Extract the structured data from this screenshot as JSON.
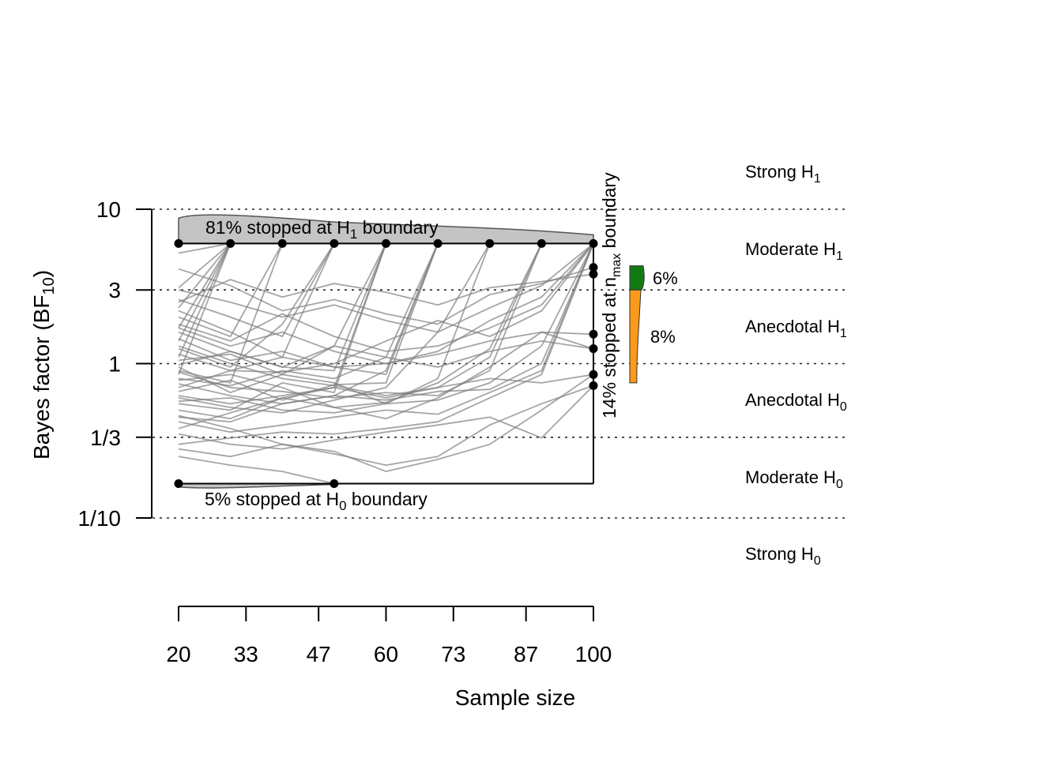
{
  "chart_data": {
    "type": "line",
    "xlabel": "Sample size",
    "ylabel": "Bayes factor (BF",
    "ylabel_sub": "10",
    "ylabel_end": ")",
    "yscale": "log",
    "xlim": [
      20,
      100
    ],
    "ylim": [
      0.1,
      10
    ],
    "x_ticks": [
      20,
      33,
      47,
      60,
      73,
      87,
      100
    ],
    "x_tick_labels": [
      "20",
      "33",
      "47",
      "60",
      "73",
      "87",
      "100"
    ],
    "y_ticks": [
      {
        "value": 10,
        "label": "10"
      },
      {
        "value": 3,
        "label": "3"
      },
      {
        "value": 1,
        "label": "1"
      },
      {
        "value": 0.3333,
        "label": "1/3"
      },
      {
        "value": 0.1,
        "label": "1/10"
      }
    ],
    "reference_lines": [
      10,
      3,
      1,
      0.3333,
      0.1
    ],
    "boundaries": {
      "upper": 6,
      "lower": 0.167,
      "nmax": 100
    },
    "evidence_categories": [
      {
        "main": "Strong H",
        "sub": "1"
      },
      {
        "main": "Moderate H",
        "sub": "1"
      },
      {
        "main": "Anecdotal H",
        "sub": "1"
      },
      {
        "main": "Anecdotal H",
        "sub": "0"
      },
      {
        "main": "Moderate H",
        "sub": "0"
      },
      {
        "main": "Strong H",
        "sub": "0"
      }
    ],
    "annotations": {
      "h1_stop": {
        "pre": "81% stopped at H",
        "sub": "1",
        "post": " boundary"
      },
      "h0_stop": {
        "pre": "5% stopped at H",
        "sub": "0",
        "post": " boundary"
      },
      "nmax_stop": {
        "pre": "14% stopped at n",
        "sub": "max",
        "post": " boundary"
      }
    },
    "nmax_distribution": [
      {
        "label": "6%",
        "range": [
          3,
          4.3
        ],
        "color": "#137a13"
      },
      {
        "label": "8%",
        "range": [
          0.75,
          3
        ],
        "color": "#fb9a1b"
      }
    ],
    "stop_points_h1": [
      20,
      30,
      40,
      50,
      60,
      70,
      80,
      90,
      100
    ],
    "stop_points_h0": [
      20,
      50
    ],
    "stop_points_nmax": [
      4.2,
      3.8,
      1.55,
      1.25,
      0.85,
      0.72
    ],
    "series": [
      {
        "x": [
          20,
          30
        ],
        "y": [
          5.2,
          6
        ]
      },
      {
        "x": [
          20,
          30
        ],
        "y": [
          3.1,
          6
        ]
      },
      {
        "x": [
          20,
          30
        ],
        "y": [
          2.3,
          6
        ]
      },
      {
        "x": [
          20,
          30
        ],
        "y": [
          1.7,
          6
        ]
      },
      {
        "x": [
          20,
          30
        ],
        "y": [
          1.4,
          6
        ]
      },
      {
        "x": [
          20,
          30
        ],
        "y": [
          1.1,
          6
        ]
      },
      {
        "x": [
          20,
          30
        ],
        "y": [
          0.85,
          6
        ]
      },
      {
        "x": [
          20,
          30,
          40
        ],
        "y": [
          2.0,
          1.5,
          6
        ]
      },
      {
        "x": [
          20,
          30,
          40
        ],
        "y": [
          0.9,
          0.75,
          6
        ]
      },
      {
        "x": [
          20,
          30,
          40,
          50
        ],
        "y": [
          2.6,
          2.0,
          1.5,
          6
        ]
      },
      {
        "x": [
          20,
          30,
          40,
          50
        ],
        "y": [
          1.25,
          0.95,
          1.8,
          6
        ]
      },
      {
        "x": [
          20,
          30,
          40,
          50
        ],
        "y": [
          0.7,
          0.9,
          1.1,
          6
        ]
      },
      {
        "x": [
          20,
          30,
          40,
          50,
          60
        ],
        "y": [
          1.6,
          1.2,
          0.95,
          0.9,
          6
        ]
      },
      {
        "x": [
          20,
          30,
          40,
          50,
          60
        ],
        "y": [
          0.55,
          0.5,
          0.75,
          0.65,
          6
        ]
      },
      {
        "x": [
          20,
          30,
          40,
          50,
          60
        ],
        "y": [
          1.05,
          1.15,
          0.85,
          1.3,
          6
        ]
      },
      {
        "x": [
          20,
          30,
          40,
          50,
          60
        ],
        "y": [
          0.38,
          0.48,
          0.6,
          0.7,
          6
        ]
      },
      {
        "x": [
          20,
          30,
          40,
          50,
          60,
          70
        ],
        "y": [
          0.8,
          0.72,
          0.9,
          0.8,
          1.1,
          6
        ]
      },
      {
        "x": [
          20,
          30,
          40,
          50,
          60,
          70
        ],
        "y": [
          0.45,
          0.42,
          0.55,
          0.62,
          0.9,
          6
        ]
      },
      {
        "x": [
          20,
          30,
          40,
          50,
          60,
          70
        ],
        "y": [
          1.45,
          1.05,
          1.2,
          0.95,
          0.85,
          6
        ]
      },
      {
        "x": [
          20,
          30,
          40,
          50,
          60,
          70
        ],
        "y": [
          0.66,
          0.78,
          0.58,
          0.73,
          0.75,
          6
        ]
      },
      {
        "x": [
          20,
          30,
          40,
          50,
          60,
          70,
          80
        ],
        "y": [
          0.95,
          0.65,
          0.85,
          0.75,
          0.55,
          0.8,
          6
        ]
      },
      {
        "x": [
          20,
          30,
          40,
          50,
          60,
          70,
          80
        ],
        "y": [
          0.6,
          0.52,
          0.48,
          0.58,
          0.7,
          1.6,
          6
        ]
      },
      {
        "x": [
          20,
          30,
          40,
          50,
          60,
          70,
          80,
          90
        ],
        "y": [
          1.3,
          1.0,
          0.8,
          0.72,
          0.62,
          0.7,
          1.1,
          6
        ]
      },
      {
        "x": [
          20,
          30,
          40,
          50,
          60,
          70,
          80,
          90
        ],
        "y": [
          0.5,
          0.44,
          0.6,
          0.52,
          0.56,
          0.75,
          1.25,
          6
        ]
      },
      {
        "x": [
          20,
          30,
          40,
          50,
          60,
          70,
          80,
          90
        ],
        "y": [
          0.88,
          0.7,
          0.66,
          0.6,
          0.65,
          0.62,
          0.9,
          6
        ]
      },
      {
        "x": [
          20,
          30,
          40,
          50,
          60,
          70,
          80,
          90,
          100
        ],
        "y": [
          0.42,
          0.36,
          0.4,
          0.45,
          0.5,
          0.47,
          0.65,
          0.9,
          6
        ]
      },
      {
        "x": [
          20,
          30,
          40,
          50,
          60,
          70,
          80,
          90,
          100
        ],
        "y": [
          0.74,
          0.62,
          0.55,
          0.62,
          0.58,
          0.66,
          0.68,
          1.0,
          6
        ]
      },
      {
        "x": [
          20,
          30,
          40,
          50,
          60,
          70,
          80,
          90,
          100
        ],
        "y": [
          2.2,
          1.6,
          1.1,
          0.95,
          1.0,
          1.2,
          1.9,
          2.7,
          6
        ]
      },
      {
        "x": [
          20,
          30,
          40,
          50,
          60,
          70,
          80,
          90,
          100
        ],
        "y": [
          1.8,
          1.4,
          2.1,
          1.5,
          1.2,
          1.3,
          1.7,
          2.4,
          6
        ]
      },
      {
        "x": [
          20,
          30,
          40,
          50,
          60,
          70,
          80,
          90,
          100
        ],
        "y": [
          0.3,
          0.33,
          0.36,
          0.35,
          0.38,
          0.42,
          0.6,
          0.85,
          6
        ]
      },
      {
        "x": [
          20,
          30,
          40,
          50,
          60,
          70,
          80,
          90,
          100
        ],
        "y": [
          1.15,
          0.9,
          0.88,
          1.0,
          1.4,
          1.9,
          1.5,
          2.2,
          6
        ]
      },
      {
        "x": [
          20,
          30,
          40,
          50,
          60,
          70,
          80,
          90,
          100
        ],
        "y": [
          3.0,
          2.5,
          2.0,
          2.4,
          1.9,
          1.6,
          2.3,
          3.2,
          6
        ]
      },
      {
        "x": [
          20,
          30,
          40,
          50,
          60,
          70,
          80,
          90,
          100
        ],
        "y": [
          0.57,
          0.6,
          0.5,
          0.48,
          0.55,
          0.58,
          0.75,
          1.3,
          6
        ]
      },
      {
        "x": [
          20,
          30,
          40,
          50
        ],
        "y": [
          0.25,
          0.22,
          0.2,
          0.167
        ]
      },
      {
        "x": [
          20,
          30,
          40,
          50,
          60,
          70,
          80,
          90,
          100
        ],
        "y": [
          4.1,
          3.2,
          2.2,
          2.6,
          2.1,
          1.8,
          2.8,
          3.3,
          4.2
        ]
      },
      {
        "x": [
          20,
          30,
          40,
          50,
          60,
          70,
          80,
          90,
          100
        ],
        "y": [
          2.5,
          3.5,
          2.7,
          3.3,
          2.9,
          2.4,
          3.1,
          3.4,
          3.8
        ]
      },
      {
        "x": [
          20,
          30,
          40,
          50,
          60,
          70,
          80,
          90,
          100
        ],
        "y": [
          1.7,
          1.3,
          1.6,
          1.2,
          1.0,
          1.15,
          1.4,
          1.6,
          1.55
        ]
      },
      {
        "x": [
          20,
          30,
          40,
          50,
          60,
          70,
          80,
          90,
          100
        ],
        "y": [
          0.98,
          1.2,
          0.95,
          1.3,
          1.1,
          0.95,
          1.2,
          1.4,
          1.25
        ]
      },
      {
        "x": [
          20,
          30,
          40,
          50,
          60,
          70,
          80,
          90,
          100
        ],
        "y": [
          0.62,
          0.55,
          0.62,
          0.7,
          0.6,
          0.7,
          0.8,
          0.75,
          0.85
        ]
      },
      {
        "x": [
          20,
          30,
          40,
          50,
          60,
          70,
          80,
          90,
          100
        ],
        "y": [
          0.35,
          0.3,
          0.28,
          0.32,
          0.36,
          0.4,
          0.45,
          0.33,
          0.72
        ]
      },
      {
        "x": [
          20,
          30,
          40,
          50,
          60,
          70,
          80,
          90,
          100
        ],
        "y": [
          0.28,
          0.25,
          0.3,
          0.26,
          0.22,
          0.25,
          0.4,
          0.55,
          0.72
        ]
      },
      {
        "x": [
          20,
          30,
          40,
          50,
          60,
          70,
          80,
          90,
          100
        ],
        "y": [
          0.46,
          0.38,
          0.3,
          0.27,
          0.2,
          0.24,
          0.3,
          0.5,
          0.85
        ]
      },
      {
        "x": [
          20,
          30,
          40,
          50,
          60,
          70,
          80,
          90,
          100
        ],
        "y": [
          0.78,
          0.85,
          0.7,
          0.52,
          0.44,
          0.6,
          0.95,
          1.6,
          1.25
        ]
      }
    ]
  }
}
